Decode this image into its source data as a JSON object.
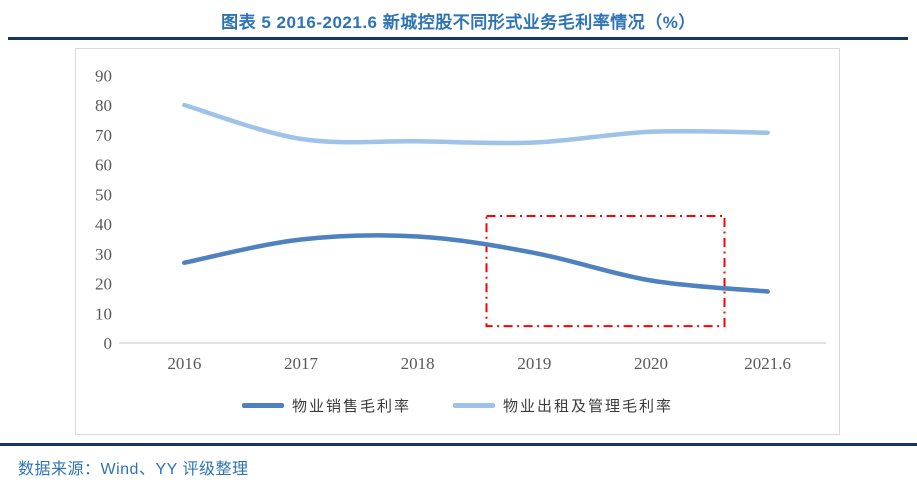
{
  "header": {
    "title": "图表 5 2016-2021.6 新城控股不同形式业务毛利率情况（%）"
  },
  "footer": {
    "source": "数据来源：Wind、YY 评级整理"
  },
  "colors": {
    "title_blue": "#2E74B5",
    "rule_navy": "#17365D",
    "chart_border": "#D9D9D9",
    "axis_line": "#D9D9D9",
    "tick_text": "#595959",
    "series_sales": "#4E81BD",
    "series_rental": "#9EC2E8",
    "annotation_red": "#FF0000"
  },
  "chart_data": {
    "type": "line",
    "title": "图表 5 2016-2021.6 新城控股不同形式业务毛利率情况（%）",
    "categories": [
      "2016",
      "2017",
      "2018",
      "2019",
      "2020",
      "2021.6"
    ],
    "series": [
      {
        "name": "物业销售毛利率",
        "color": "#4E81BD",
        "values": [
          27.0,
          34.8,
          35.8,
          30.3,
          21.0,
          17.3
        ]
      },
      {
        "name": "物业出租及管理毛利率",
        "color": "#9EC2E8",
        "values": [
          80.0,
          68.6,
          67.8,
          67.4,
          71.0,
          70.7
        ]
      }
    ],
    "xlabel": "",
    "ylabel": "",
    "ylim": [
      0,
      90
    ],
    "y_ticks": [
      0,
      10,
      20,
      30,
      40,
      50,
      60,
      70,
      80,
      90
    ],
    "grid": false,
    "smooth": true,
    "legend_position": "bottom",
    "annotation": {
      "type": "rect",
      "line_style": "dash-dot",
      "color": "#FF0000",
      "x_index_range": [
        2.59,
        4.63
      ],
      "y_value_range": [
        5.7,
        42.7
      ]
    }
  }
}
